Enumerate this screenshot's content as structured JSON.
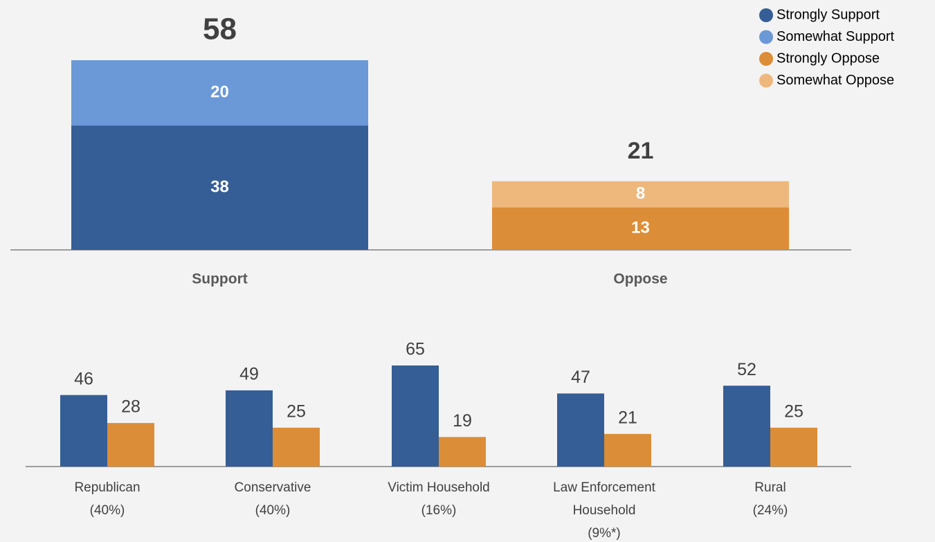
{
  "chart_data": [
    {
      "type": "stacked-bar",
      "categories": [
        "Support",
        "Oppose"
      ],
      "totals": [
        58,
        21
      ],
      "series": [
        {
          "name": "Strongly Support",
          "color": "#355e96",
          "values": [
            38,
            null
          ]
        },
        {
          "name": "Somewhat Support",
          "color": "#6b98d6",
          "values": [
            20,
            null
          ]
        },
        {
          "name": "Strongly Oppose",
          "color": "#dc8d37",
          "values": [
            null,
            13
          ]
        },
        {
          "name": "Somewhat Oppose",
          "color": "#eeb87d",
          "values": [
            null,
            8
          ]
        }
      ],
      "legend": "top-right"
    },
    {
      "type": "grouped-bar",
      "categories": [
        [
          "Republican",
          "(40%)"
        ],
        [
          "Conservative",
          "(40%)"
        ],
        [
          "Victim Household",
          "(16%)"
        ],
        [
          "Law Enforcement",
          "Household",
          "(9%*)"
        ],
        [
          "Rural",
          "(24%)"
        ]
      ],
      "series": [
        {
          "color": "#355e96",
          "values": [
            46,
            49,
            65,
            47,
            52
          ]
        },
        {
          "color": "#dc8d37",
          "values": [
            28,
            25,
            19,
            21,
            25
          ]
        }
      ]
    }
  ]
}
